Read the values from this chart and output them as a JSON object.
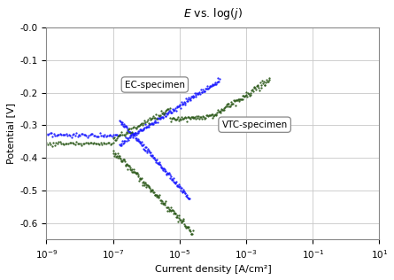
{
  "title": "E vs. log(j)",
  "xlabel": "Current density [A/cm²]",
  "ylabel": "Potential [V]",
  "xlim": [
    1e-09,
    10
  ],
  "ylim": [
    -0.65,
    0.0
  ],
  "yticks": [
    0.0,
    -0.1,
    -0.2,
    -0.3,
    -0.4,
    -0.5,
    -0.6
  ],
  "ytick_labels": [
    "-0.0",
    "-0.1",
    "-0.2",
    "-0.3",
    "-0.4",
    "-0.5",
    "-0.6"
  ],
  "ec_color": "#1a1aff",
  "vtc_color": "#2d5a1b",
  "ec_label": "EC-specimen",
  "vtc_label": "VTC-specimen",
  "background_color": "#ffffff",
  "grid_color": "#c8c8c8",
  "ec_Ecorr": -0.33,
  "ec_jcorr": 4e-07,
  "vtc_Ecorr": -0.355,
  "vtc_jcorr": 6e-08
}
